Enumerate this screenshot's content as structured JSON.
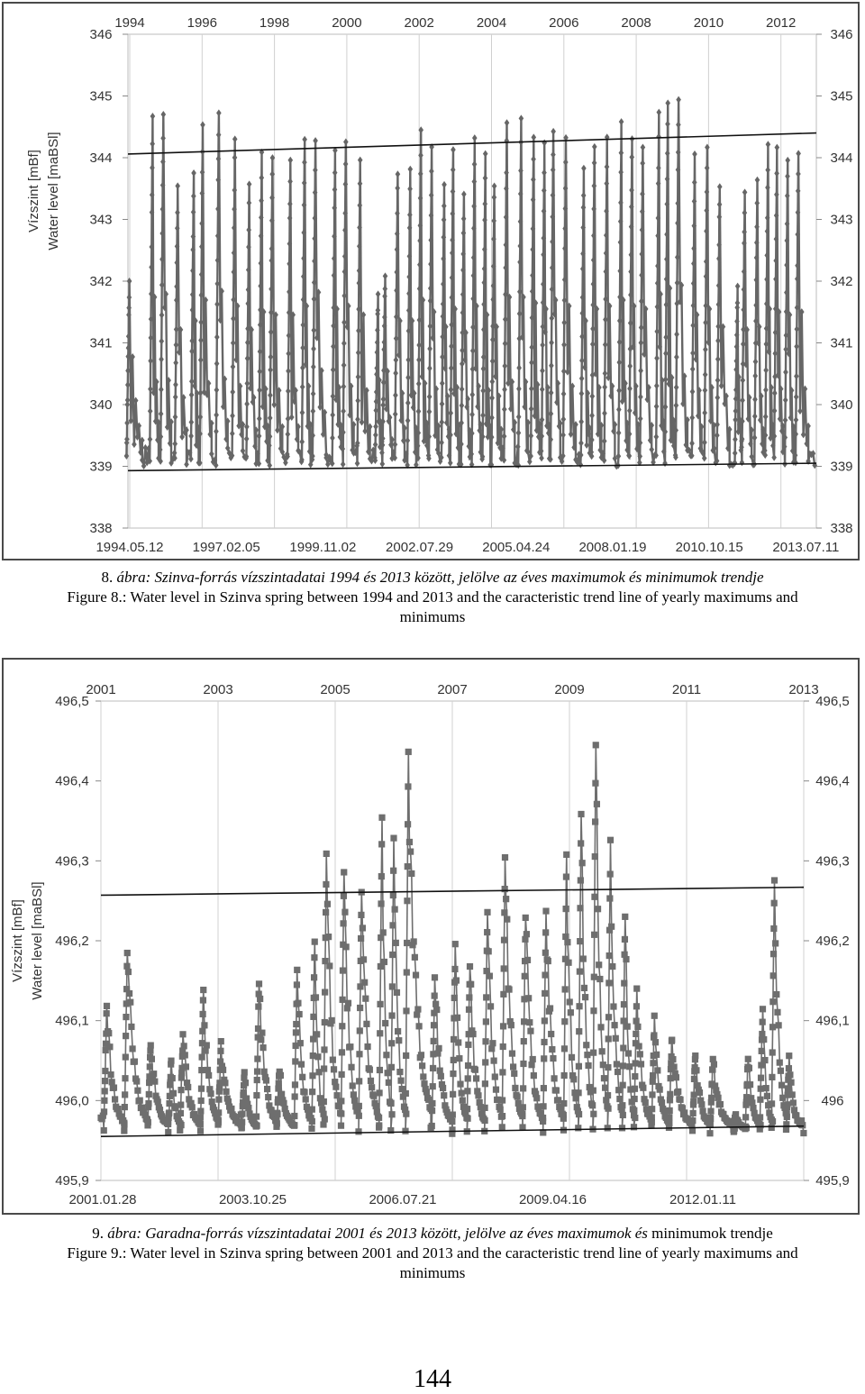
{
  "page_number": "144",
  "figure8": {
    "caption_hu_prefix": "8. ",
    "caption_hu": "ábra: Szinva-forrás vízszintadatai 1994 és 2013 között, jelölve az éves maximumok és minimumok trendje",
    "caption_en": "Figure 8.: Water level in Szinva spring between 1994 and 2013 and the caracteristic trend line of yearly maximums and minimums"
  },
  "figure9": {
    "caption_hu_prefix": "9. ",
    "caption_hu": "ábra: Garadna-forrás vízszintadatai 2001 és 2013 között, jelölve az éves maximumok és",
    "caption_hu_tail": " minimumok trendje",
    "caption_en": "Figure 9.: Water level in Szinva spring between 2001 and 2013 and the caracteristic trend line of yearly maximums and minimums"
  },
  "chart_data": [
    {
      "type": "line",
      "ylabel_1": "Vízszint [mBf]",
      "ylabel_2": "Water level [maBSl]",
      "ylim": [
        338,
        346
      ],
      "yticks": [
        "338",
        "339",
        "340",
        "341",
        "342",
        "343",
        "344",
        "345",
        "346"
      ],
      "top_ticks": [
        "1994",
        "1996",
        "1998",
        "2000",
        "2002",
        "2004",
        "2006",
        "2008",
        "2010",
        "2012"
      ],
      "bottom_ticks": [
        "1994.05.12",
        "1997.02.05",
        "1999.11.02",
        "2002.07.29",
        "2005.04.24",
        "2008.01.19",
        "2010.10.15",
        "2013.07.11"
      ],
      "xlim": [
        1994.36,
        2013.6
      ],
      "grid": "vertical",
      "marker": "diamond",
      "color": "#666666",
      "baseline": 339.1,
      "peaks": [
        [
          1994.4,
          342.0
        ],
        [
          1995.05,
          344.6
        ],
        [
          1995.35,
          344.7
        ],
        [
          1995.75,
          343.5
        ],
        [
          1996.2,
          343.8
        ],
        [
          1996.45,
          344.5
        ],
        [
          1996.9,
          344.8
        ],
        [
          1997.35,
          344.3
        ],
        [
          1997.75,
          343.5
        ],
        [
          1998.1,
          344.1
        ],
        [
          1998.4,
          344.0
        ],
        [
          1998.9,
          344.0
        ],
        [
          1999.3,
          344.3
        ],
        [
          1999.6,
          344.2
        ],
        [
          2000.15,
          344.2
        ],
        [
          2000.45,
          344.3
        ],
        [
          2000.85,
          344.0
        ],
        [
          2001.35,
          341.8
        ],
        [
          2001.55,
          342.1
        ],
        [
          2001.9,
          343.8
        ],
        [
          2002.25,
          343.8
        ],
        [
          2002.55,
          344.5
        ],
        [
          2002.85,
          344.1
        ],
        [
          2003.2,
          343.6
        ],
        [
          2003.45,
          344.2
        ],
        [
          2003.75,
          343.4
        ],
        [
          2004.05,
          344.3
        ],
        [
          2004.35,
          344.0
        ],
        [
          2004.6,
          343.6
        ],
        [
          2004.95,
          344.6
        ],
        [
          2005.35,
          344.6
        ],
        [
          2005.7,
          344.4
        ],
        [
          2006.0,
          344.2
        ],
        [
          2006.25,
          344.5
        ],
        [
          2006.6,
          344.3
        ],
        [
          2007.1,
          343.8
        ],
        [
          2007.4,
          344.2
        ],
        [
          2007.75,
          344.3
        ],
        [
          2008.15,
          344.5
        ],
        [
          2008.45,
          344.3
        ],
        [
          2008.75,
          344.2
        ],
        [
          2009.2,
          344.7
        ],
        [
          2009.45,
          344.9
        ],
        [
          2009.75,
          345.0
        ],
        [
          2010.2,
          344.0
        ],
        [
          2010.55,
          344.2
        ],
        [
          2010.9,
          343.6
        ],
        [
          2011.4,
          341.9
        ],
        [
          2011.6,
          343.5
        ],
        [
          2011.95,
          343.6
        ],
        [
          2012.25,
          344.2
        ],
        [
          2012.5,
          344.1
        ],
        [
          2012.8,
          344.0
        ],
        [
          2013.1,
          344.1
        ]
      ],
      "trend_max": [
        [
          1994.36,
          344.06
        ],
        [
          2013.6,
          344.4
        ]
      ],
      "trend_min": [
        [
          1994.36,
          338.93
        ],
        [
          2013.6,
          339.05
        ]
      ]
    },
    {
      "type": "line",
      "ylabel_1": "Vízszint [mBf]",
      "ylabel_2": "Water level [maBSl]",
      "ylim": [
        495.9,
        496.5
      ],
      "yticks_left": [
        "495,9",
        "496,0",
        "496,1",
        "496,2",
        "496,3",
        "496,4",
        "496,5"
      ],
      "yticks_right": [
        "495,9",
        "496",
        "496,1",
        "496,2",
        "496,3",
        "496,4",
        "496,5"
      ],
      "top_ticks": [
        "2001",
        "2003",
        "2005",
        "2007",
        "2009",
        "2011",
        "2013"
      ],
      "bottom_ticks": [
        "2001.01.28",
        "2003.10.25",
        "2006.07.21",
        "2009.04.16",
        "2012.01.11"
      ],
      "xlim": [
        2001.0,
        2013.0
      ],
      "grid": "vertical",
      "marker": "square",
      "color": "#6e6e6e",
      "peaks": [
        [
          2001.1,
          496.12
        ],
        [
          2001.45,
          496.19
        ],
        [
          2001.85,
          496.07
        ],
        [
          2002.2,
          496.05
        ],
        [
          2002.4,
          496.08
        ],
        [
          2002.75,
          496.14
        ],
        [
          2003.05,
          496.07
        ],
        [
          2003.45,
          496.03
        ],
        [
          2003.7,
          496.15
        ],
        [
          2004.05,
          496.04
        ],
        [
          2004.35,
          496.16
        ],
        [
          2004.65,
          496.2
        ],
        [
          2004.85,
          496.31
        ],
        [
          2005.15,
          496.29
        ],
        [
          2005.45,
          496.26
        ],
        [
          2005.8,
          496.36
        ],
        [
          2006.0,
          496.33
        ],
        [
          2006.25,
          496.44
        ],
        [
          2006.7,
          496.15
        ],
        [
          2007.05,
          496.19
        ],
        [
          2007.3,
          496.17
        ],
        [
          2007.6,
          496.24
        ],
        [
          2007.9,
          496.3
        ],
        [
          2008.25,
          496.23
        ],
        [
          2008.6,
          496.24
        ],
        [
          2008.95,
          496.31
        ],
        [
          2009.2,
          496.36
        ],
        [
          2009.45,
          496.45
        ],
        [
          2009.7,
          496.32
        ],
        [
          2009.95,
          496.23
        ],
        [
          2010.15,
          496.14
        ],
        [
          2010.45,
          496.1
        ],
        [
          2010.75,
          496.08
        ],
        [
          2011.15,
          496.06
        ],
        [
          2011.45,
          496.05
        ],
        [
          2011.85,
          495.98
        ],
        [
          2012.05,
          496.05
        ],
        [
          2012.3,
          496.12
        ],
        [
          2012.5,
          496.28
        ],
        [
          2012.75,
          496.05
        ]
      ],
      "trend_max": [
        [
          2001.0,
          496.257
        ],
        [
          2013.0,
          496.267
        ]
      ],
      "trend_min": [
        [
          2001.0,
          495.955
        ],
        [
          2013.0,
          495.968
        ]
      ]
    }
  ]
}
